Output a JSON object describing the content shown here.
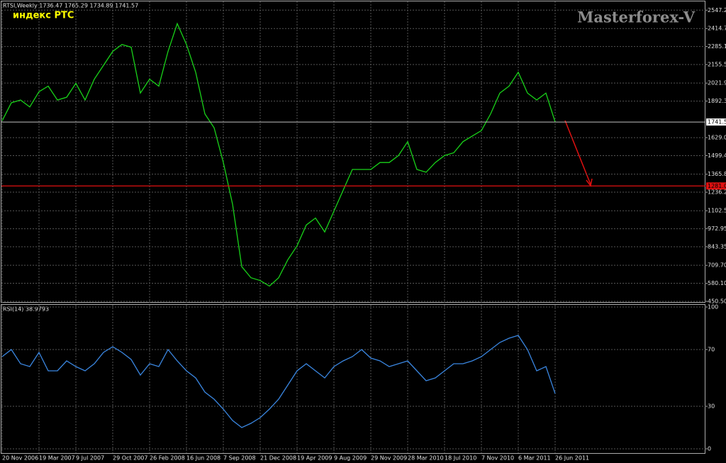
{
  "chart_data": [
    {
      "type": "line",
      "title": "RTSI,Weekly  1736.47 1765.29 1734.89 1741.57",
      "annotation": "индекс РТС",
      "watermark": "Masterforex-V",
      "categories": [
        "20 Nov 2006",
        null,
        null,
        null,
        "19 Mar 2007",
        null,
        null,
        null,
        "9 Jul 2007",
        null,
        null,
        null,
        "29 Oct 2007",
        null,
        null,
        null,
        "26 Feb 2008",
        null,
        null,
        null,
        "16 Jun 2008",
        null,
        null,
        null,
        "7 Sep 2008",
        null,
        null,
        null,
        "21 Dec 2008",
        null,
        null,
        null,
        "19 Apr 2009",
        null,
        null,
        null,
        "9 Aug 2009",
        null,
        null,
        null,
        "29 Nov 2009",
        null,
        null,
        null,
        "28 Mar 2010",
        null,
        null,
        null,
        "18 Jul 2010",
        null,
        null,
        null,
        "7 Nov 2010",
        null,
        null,
        null,
        "6 Mar 2011",
        null,
        null,
        null,
        "26 Jun 2011"
      ],
      "series": [
        {
          "name": "RTSI",
          "color": "#19d219",
          "values": [
            1750,
            1880,
            1900,
            1850,
            1960,
            2000,
            1900,
            1920,
            2020,
            1900,
            2050,
            2150,
            2250,
            2300,
            2280,
            1950,
            2050,
            2000,
            2250,
            2450,
            2300,
            2100,
            1800,
            1700,
            1450,
            1150,
            700,
            620,
            600,
            560,
            620,
            750,
            850,
            1000,
            1050,
            950,
            1100,
            1250,
            1400,
            1400,
            1400,
            1450,
            1450,
            1500,
            1600,
            1400,
            1380,
            1450,
            1500,
            1520,
            1600,
            1640,
            1680,
            1800,
            1950,
            2000,
            2100,
            1950,
            1900,
            1950,
            1741.57
          ]
        }
      ],
      "ylim": [
        440,
        2610
      ],
      "yticks": [
        {
          "value": 2547.2,
          "label": "2547.20"
        },
        {
          "value": 2414.75,
          "label": "2414.75"
        },
        {
          "value": 2285.15,
          "label": "2285.15"
        },
        {
          "value": 2155.55,
          "label": "2155.55"
        },
        {
          "value": 2021.9,
          "label": "2021.90"
        },
        {
          "value": 1892.3,
          "label": "1892.30"
        },
        {
          "value": 1629.05,
          "label": "1629.05"
        },
        {
          "value": 1499.45,
          "label": "1499.45"
        },
        {
          "value": 1365.8,
          "label": "1365.80"
        },
        {
          "value": 1236.2,
          "label": "1236.20"
        },
        {
          "value": 1102.55,
          "label": "1102.55"
        },
        {
          "value": 972.95,
          "label": "972.95"
        },
        {
          "value": 843.35,
          "label": "843.35"
        },
        {
          "value": 709.7,
          "label": "709.70"
        },
        {
          "value": 580.1,
          "label": "580.10"
        },
        {
          "value": 450.5,
          "label": "450.50"
        }
      ],
      "current_price": 1741.57,
      "level": 1281.03,
      "grid": true
    },
    {
      "type": "line",
      "title": "RSI(14) 38.9793",
      "series": [
        {
          "name": "RSI(14)",
          "color": "#3a86e0",
          "values": [
            65,
            70,
            60,
            58,
            68,
            55,
            55,
            62,
            58,
            55,
            60,
            68,
            72,
            68,
            63,
            52,
            60,
            58,
            70,
            62,
            55,
            50,
            40,
            35,
            28,
            20,
            15,
            18,
            22,
            28,
            35,
            45,
            55,
            60,
            55,
            50,
            58,
            62,
            65,
            70,
            64,
            62,
            58,
            60,
            62,
            55,
            48,
            50,
            55,
            60,
            60,
            62,
            65,
            70,
            75,
            78,
            80,
            70,
            55,
            58,
            38.9793
          ]
        }
      ],
      "ylim": [
        0,
        100
      ],
      "yticks": [
        100,
        70,
        30,
        0
      ],
      "grid": true
    }
  ]
}
